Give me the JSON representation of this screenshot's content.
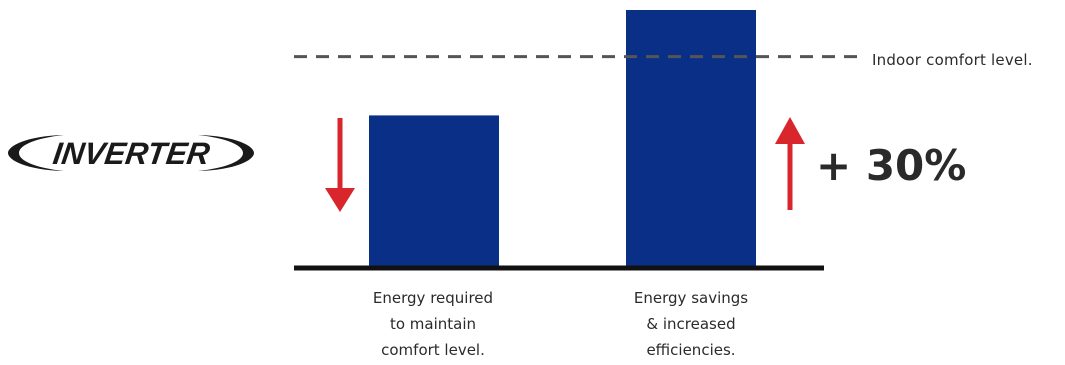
{
  "brand": {
    "logo_text": "INVERTER",
    "color": "#1a1a1a"
  },
  "chart_data": {
    "type": "bar",
    "categories": [
      "Energy required\nto maintain\ncomfort level.",
      "Energy savings\n& increased\nefficiencies."
    ],
    "values": [
      100,
      170
    ],
    "bar_color": "#0a2f86",
    "ylim": [
      0,
      170
    ],
    "reference_line": {
      "label": "Indoor comfort level.",
      "value": 139,
      "style": "dashed",
      "color": "#555555"
    },
    "annotations": {
      "decrease_arrow": {
        "bar": 0,
        "direction": "down",
        "color": "#d9262c"
      },
      "increase_arrow": {
        "bar": 1,
        "direction": "up",
        "color": "#d9262c"
      },
      "change_label": "+ 30%"
    },
    "grid": false,
    "legend": "none"
  }
}
